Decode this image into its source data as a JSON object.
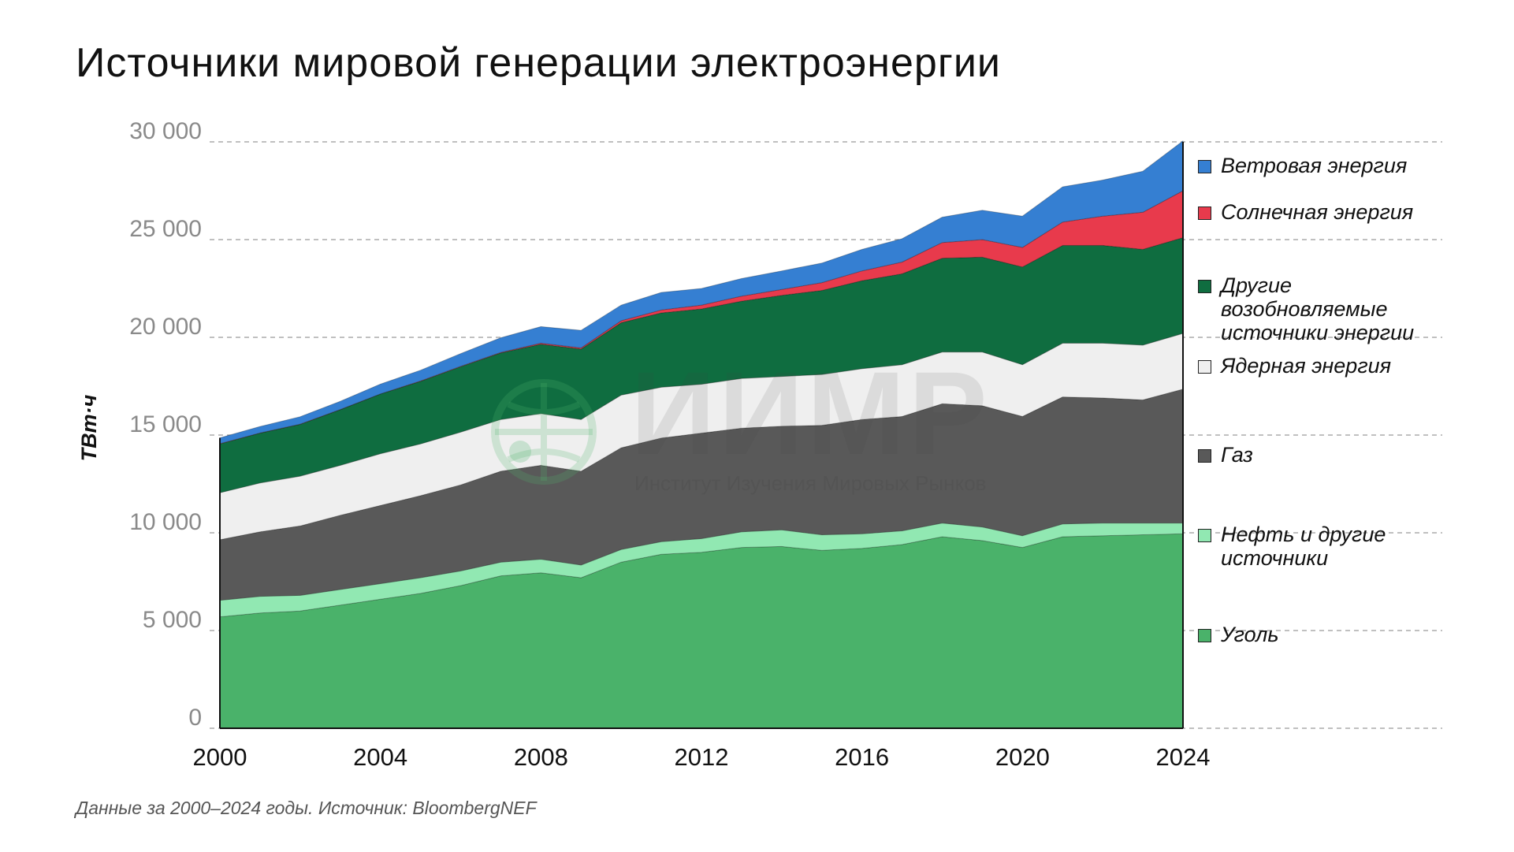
{
  "title": "Источники мировой генерации электроэнергии",
  "source_note": "Данные за 2000–2024 годы. Источник: BloombergNEF",
  "watermark": {
    "big": "ИИМР",
    "small": "Институт Изучения Мировых Рынков"
  },
  "chart_data": {
    "type": "area",
    "stacked": true,
    "title": "Источники мировой генерации электроэнергии",
    "xlabel": "",
    "ylabel": "ТВт·ч",
    "ylim": [
      0,
      30000
    ],
    "xlim": [
      2000,
      2024
    ],
    "yticks": [
      0,
      5000,
      10000,
      15000,
      20000,
      25000,
      30000
    ],
    "ytick_labels": [
      "0",
      "5 000",
      "10 000",
      "15 000",
      "20 000",
      "25 000",
      "30 000"
    ],
    "xticks": [
      2000,
      2004,
      2008,
      2012,
      2016,
      2020,
      2024
    ],
    "xtick_labels": [
      "2000",
      "2004",
      "2008",
      "2012",
      "2016",
      "2020",
      "2024"
    ],
    "grid": "horizontal dashed",
    "legend_position": "right",
    "x": [
      2000,
      2001,
      2002,
      2003,
      2004,
      2005,
      2006,
      2007,
      2008,
      2009,
      2010,
      2011,
      2012,
      2013,
      2014,
      2015,
      2016,
      2017,
      2018,
      2019,
      2020,
      2021,
      2022,
      2023,
      2024
    ],
    "series": [
      {
        "name": "Уголь",
        "color": "#4ab26a",
        "values": [
          5700,
          5900,
          6000,
          6300,
          6600,
          6900,
          7300,
          7800,
          7950,
          7700,
          8500,
          8900,
          9000,
          9250,
          9300,
          9100,
          9200,
          9400,
          9800,
          9600,
          9250,
          9800,
          9850,
          9900,
          9950
        ]
      },
      {
        "name": "Нефть и другие источники",
        "color": "#91e8b2",
        "values": [
          850,
          850,
          800,
          800,
          800,
          800,
          750,
          700,
          700,
          650,
          650,
          650,
          700,
          800,
          850,
          800,
          750,
          700,
          700,
          700,
          600,
          650,
          650,
          600,
          550
        ]
      },
      {
        "name": "Газ",
        "color": "#595959",
        "values": [
          3100,
          3300,
          3550,
          3800,
          4000,
          4200,
          4400,
          4650,
          4800,
          4800,
          5200,
          5300,
          5400,
          5300,
          5300,
          5600,
          5850,
          5850,
          6100,
          6200,
          6100,
          6500,
          6400,
          6300,
          6850
        ]
      },
      {
        "name": "Ядерная энергия",
        "color": "#efefef",
        "values": [
          2400,
          2500,
          2550,
          2550,
          2650,
          2650,
          2700,
          2650,
          2650,
          2650,
          2700,
          2600,
          2500,
          2550,
          2550,
          2600,
          2600,
          2650,
          2650,
          2750,
          2650,
          2750,
          2800,
          2800,
          2850
        ]
      },
      {
        "name": "Другие возобновляемые источники энергии",
        "color": "#0f6d40",
        "values": [
          2500,
          2550,
          2650,
          2850,
          3050,
          3200,
          3350,
          3400,
          3550,
          3600,
          3700,
          3800,
          3850,
          3950,
          4150,
          4300,
          4500,
          4650,
          4800,
          4850,
          5000,
          5000,
          5000,
          4900,
          4900
        ]
      },
      {
        "name": "Солнечная энергия",
        "color": "#e83a4c",
        "values": [
          10,
          10,
          10,
          10,
          10,
          20,
          20,
          30,
          50,
          60,
          100,
          150,
          200,
          260,
          300,
          400,
          500,
          600,
          800,
          900,
          1000,
          1200,
          1500,
          1900,
          2400
        ]
      },
      {
        "name": "Ветровая энергия",
        "color": "#357fd2",
        "values": [
          300,
          330,
          380,
          420,
          500,
          550,
          650,
          750,
          850,
          900,
          800,
          900,
          850,
          900,
          950,
          1000,
          1100,
          1200,
          1300,
          1500,
          1600,
          1800,
          1850,
          2100,
          2550
        ]
      }
    ]
  },
  "legend": [
    {
      "label": "Ветровая энергия",
      "color": "#357fd2"
    },
    {
      "label": "Солнечная энергия",
      "color": "#e83a4c"
    },
    {
      "label": "Другие\nвозобновляемые\nисточники энергии",
      "color": "#0f6d40"
    },
    {
      "label": "Ядерная энергия",
      "color": "#efefef"
    },
    {
      "label": "Газ",
      "color": "#595959"
    },
    {
      "label": "Нефть и другие\nисточники",
      "color": "#91e8b2"
    },
    {
      "label": "Уголь",
      "color": "#4ab26a"
    }
  ]
}
